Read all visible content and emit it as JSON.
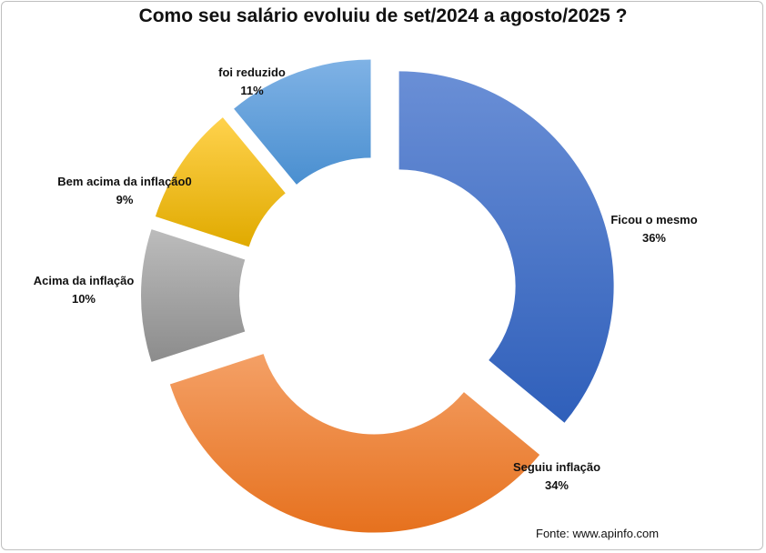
{
  "chart_data": {
    "type": "pie",
    "variant": "exploded donut",
    "title": "Como seu salário evoluiu de set/2024 a agosto/2025  ?",
    "slices": [
      {
        "label": "Ficou o mesmo",
        "value": 36,
        "value_label": "36%",
        "color_light": "#6a8fd6",
        "color_dark": "#2f5fba"
      },
      {
        "label": "Seguiu inflação",
        "value": 34,
        "value_label": "34%",
        "color_light": "#f4a066",
        "color_dark": "#e6711e"
      },
      {
        "label": "Acima da inflação",
        "value": 10,
        "value_label": "10%",
        "color_light": "#bcbcbc",
        "color_dark": "#8c8c8c"
      },
      {
        "label": "Bem acima da inflação0",
        "value": 9,
        "value_label": "9%",
        "color_light": "#ffd24d",
        "color_dark": "#e0aa00"
      },
      {
        "label": "foi reduzido",
        "value": 11,
        "value_label": "11%",
        "color_light": "#7fb2e5",
        "color_dark": "#4a8fd0"
      }
    ]
  },
  "source_text": "Fonte: www.apinfo.com"
}
